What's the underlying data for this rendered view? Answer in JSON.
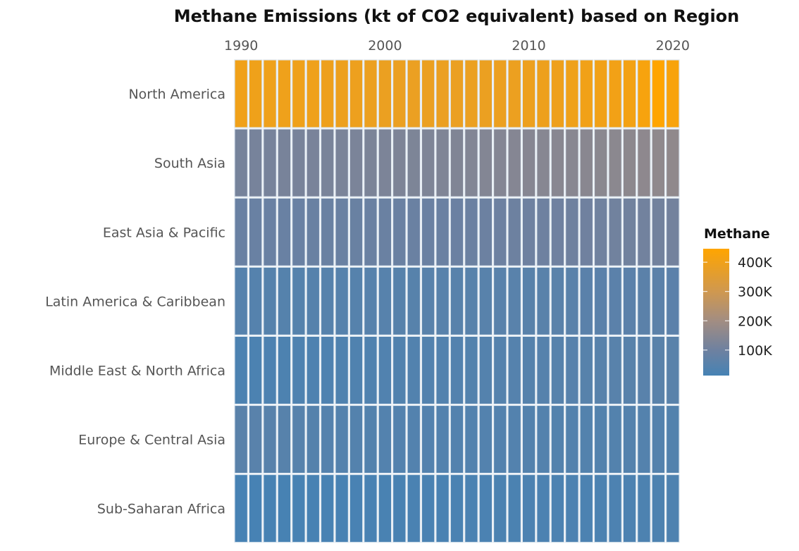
{
  "chart_data": {
    "type": "heatmap",
    "title": "Methane Emissions (kt of CO2 equivalent) based on Region",
    "xlabel": "",
    "ylabel": "",
    "x": [
      1990,
      1991,
      1992,
      1993,
      1994,
      1995,
      1996,
      1997,
      1998,
      1999,
      2000,
      2001,
      2002,
      2003,
      2004,
      2005,
      2006,
      2007,
      2008,
      2009,
      2010,
      2011,
      2012,
      2013,
      2014,
      2015,
      2016,
      2017,
      2018,
      2019,
      2020
    ],
    "x_tick_labels": [
      "1990",
      "2000",
      "2010",
      "2020"
    ],
    "x_axis_position": "top",
    "rows": [
      {
        "name": "North America",
        "values": [
          400000,
          398000,
          396000,
          396000,
          398000,
          396000,
          394000,
          392000,
          390000,
          388000,
          386000,
          384000,
          384000,
          384000,
          384000,
          384000,
          385000,
          386000,
          387000,
          388000,
          390000,
          392000,
          394000,
          398000,
          402000,
          404000,
          406000,
          410000,
          420000,
          446000,
          425000
        ]
      },
      {
        "name": "South Asia",
        "values": [
          115000,
          116000,
          117000,
          118000,
          119000,
          120000,
          121000,
          122000,
          124000,
          125000,
          127000,
          128000,
          129000,
          131000,
          133000,
          135000,
          137000,
          139000,
          141000,
          143000,
          145000,
          147000,
          149000,
          150000,
          152000,
          154000,
          156000,
          158000,
          160000,
          162000,
          165000
        ]
      },
      {
        "name": "East Asia & Pacific",
        "values": [
          88000,
          88000,
          88000,
          88000,
          88000,
          89000,
          89000,
          89000,
          89000,
          90000,
          90000,
          90000,
          91000,
          91000,
          92000,
          93000,
          94000,
          96000,
          97000,
          98000,
          99000,
          100000,
          101000,
          102000,
          103000,
          104000,
          105000,
          106000,
          107000,
          108000,
          110000
        ]
      },
      {
        "name": "Latin America & Caribbean",
        "values": [
          45000,
          45000,
          46000,
          46000,
          46000,
          47000,
          47000,
          48000,
          48000,
          49000,
          49000,
          50000,
          50000,
          51000,
          51000,
          52000,
          53000,
          53000,
          54000,
          54000,
          55000,
          55000,
          56000,
          56000,
          57000,
          57000,
          58000,
          58000,
          59000,
          59000,
          58000
        ]
      },
      {
        "name": "Middle East & North Africa",
        "values": [
          26000,
          27000,
          28000,
          29000,
          30000,
          31000,
          32000,
          33000,
          34000,
          35000,
          36000,
          37000,
          38000,
          39000,
          40000,
          41000,
          42000,
          43000,
          44000,
          45000,
          46000,
          47000,
          48000,
          49000,
          50000,
          51000,
          52000,
          53000,
          54000,
          55000,
          55000
        ]
      },
      {
        "name": "Europe & Central Asia",
        "values": [
          56000,
          54000,
          52000,
          50000,
          48000,
          46000,
          45000,
          44000,
          43000,
          42000,
          41000,
          41000,
          41000,
          41000,
          41000,
          41000,
          41000,
          41000,
          41000,
          41000,
          42000,
          42000,
          42000,
          42000,
          42000,
          42000,
          42000,
          43000,
          43000,
          43000,
          42000
        ]
      },
      {
        "name": "Sub-Saharan Africa",
        "values": [
          15000,
          15000,
          16000,
          16000,
          17000,
          17000,
          18000,
          18000,
          19000,
          19000,
          20000,
          20000,
          21000,
          21000,
          22000,
          22000,
          23000,
          23000,
          24000,
          24000,
          25000,
          25000,
          26000,
          26000,
          27000,
          27000,
          28000,
          28000,
          29000,
          29000,
          30000
        ]
      }
    ],
    "legend": {
      "title": "Methane",
      "position": "right",
      "ticks": [
        {
          "value": 400000,
          "label": "400K"
        },
        {
          "value": 300000,
          "label": "300K"
        },
        {
          "value": 200000,
          "label": "200K"
        },
        {
          "value": 100000,
          "label": "100K"
        }
      ],
      "range": [
        13000,
        446000
      ],
      "colors": {
        "low": "#4682B4",
        "high": "#FFA500"
      }
    },
    "grid": false
  }
}
